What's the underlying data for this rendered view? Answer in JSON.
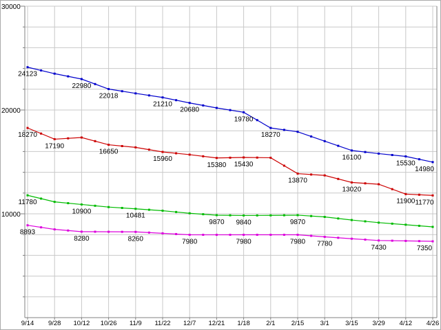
{
  "page": {
    "background": "#ffffff"
  },
  "chart_data": {
    "type": "line",
    "title": "",
    "xlabel": "",
    "ylabel": "",
    "grid": true,
    "legend_position": "none",
    "ylim": [
      0,
      30000
    ],
    "y_major_step": 10000,
    "y_minor_step": 2000,
    "y_axis_labels": [
      "10000",
      "20000",
      "30000"
    ],
    "grid_color": "#c8c8c8",
    "axis_color": "#808080",
    "label_color": "#000000",
    "categories": [
      "9/14",
      "9/28",
      "10/12",
      "10/26",
      "11/9",
      "11/22",
      "12/7",
      "12/21",
      "1/18",
      "2/1",
      "2/15",
      "3/1",
      "3/15",
      "3/29",
      "4/12",
      "4/26"
    ],
    "series": [
      {
        "name": "series-blue",
        "color": "#0000cc",
        "values": [
          24123,
          23500,
          22980,
          22018,
          21600,
          21210,
          20680,
          20200,
          19780,
          18270,
          17900,
          17000,
          16100,
          15800,
          15530,
          14980
        ],
        "point_labels": [
          "24123",
          null,
          "22980",
          "22018",
          null,
          "21210",
          "20680",
          null,
          "19780",
          "18270",
          null,
          null,
          "16100",
          null,
          "15530",
          "14980"
        ]
      },
      {
        "name": "series-red",
        "color": "#cc0000",
        "values": [
          18270,
          17190,
          17350,
          16650,
          16400,
          15960,
          15700,
          15380,
          15430,
          15400,
          13870,
          13700,
          13020,
          12850,
          11900,
          11770
        ],
        "point_labels": [
          "18270",
          "17190",
          null,
          "16650",
          null,
          "15960",
          null,
          "15380",
          "15430",
          null,
          "13870",
          null,
          "13020",
          null,
          "11900",
          "11770"
        ]
      },
      {
        "name": "series-green",
        "color": "#00bb00",
        "values": [
          11780,
          11150,
          10900,
          10650,
          10481,
          10300,
          10050,
          9870,
          9840,
          9850,
          9870,
          9700,
          9400,
          9150,
          8950,
          8740
        ],
        "point_labels": [
          "11780",
          null,
          "10900",
          null,
          "10481",
          null,
          null,
          "9870",
          "9840",
          null,
          "9870",
          null,
          null,
          null,
          null,
          null
        ]
      },
      {
        "name": "series-magenta",
        "color": "#dd00dd",
        "values": [
          8893,
          8500,
          8280,
          8270,
          8260,
          8120,
          7980,
          7975,
          7980,
          7978,
          7980,
          7780,
          7600,
          7430,
          7390,
          7350
        ],
        "point_labels": [
          "8893",
          null,
          "8280",
          null,
          "8260",
          null,
          "7980",
          null,
          "7980",
          null,
          "7980",
          "7780",
          null,
          "7430",
          null,
          "7350"
        ]
      }
    ]
  }
}
